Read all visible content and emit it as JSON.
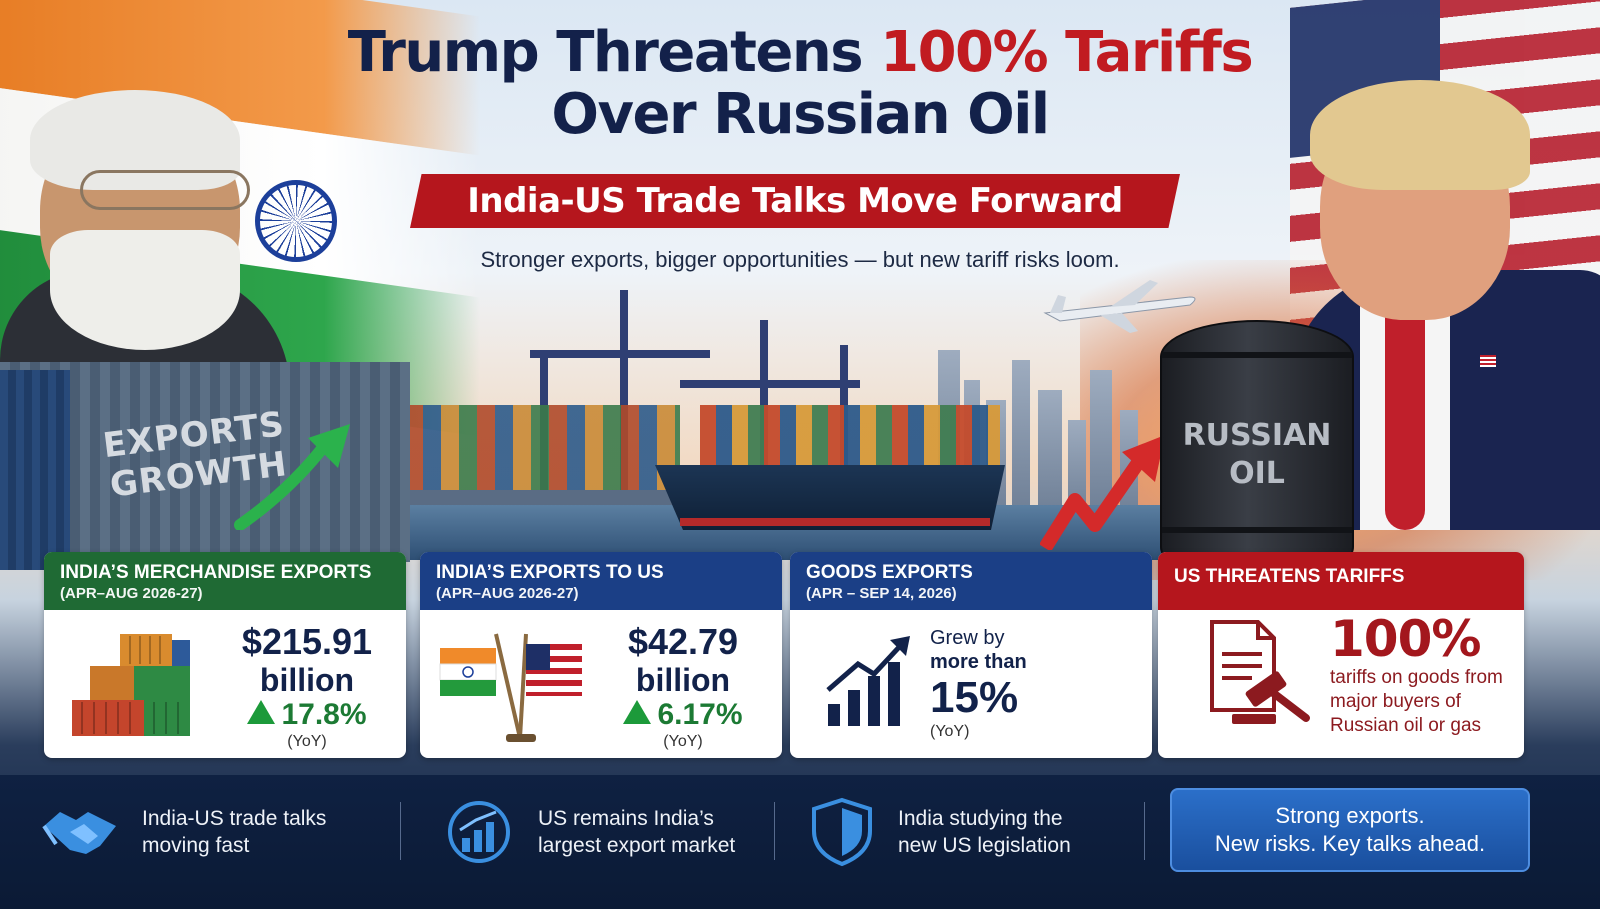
{
  "headline": {
    "line1_start": "Trump Threatens ",
    "line1_red": "100% Tariffs",
    "line2": "Over Russian Oil"
  },
  "banner": "India-US Trade Talks Move Forward",
  "subtitle": "Stronger exports, bigger opportunities — but new tariff risks loom.",
  "scene": {
    "container_text_1": "EXPORTS",
    "container_text_2": "GROWTH",
    "barrel_text_1": "RUSSIAN",
    "barrel_text_2": "OIL"
  },
  "cards": [
    {
      "title": "INDIA’S MERCHANDISE EXPORTS",
      "period": "(APR–AUG 2026-27)",
      "value": "$215.91",
      "unit": "billion",
      "change": "17.8%",
      "yoy": "(YoY)",
      "icon": "shipping-containers-icon"
    },
    {
      "title": "INDIA’S EXPORTS TO US",
      "period": "(APR–AUG 2026-27)",
      "value": "$42.79",
      "unit": "billion",
      "change": "6.17%",
      "yoy": "(YoY)",
      "icon": "india-us-flags-icon"
    },
    {
      "title": "GOODS EXPORTS",
      "period": "(APR – SEP 14, 2026)",
      "grew_by": "Grew by",
      "more_than": "more than",
      "value": "15%",
      "yoy": "(YoY)",
      "icon": "growth-chart-icon"
    },
    {
      "title": "US THREATENS TARIFFS",
      "value": "100%",
      "description": "tariffs on goods from major buyers of Russian oil or gas",
      "icon": "gavel-document-icon"
    }
  ],
  "footer": {
    "items": [
      {
        "text": "India-US trade talks moving fast",
        "line1": "India-US trade talks",
        "line2": "moving fast",
        "icon": "handshake-icon"
      },
      {
        "text": "US remains India’s largest export market",
        "line1": "US remains India’s",
        "line2": "largest export market",
        "icon": "bar-growth-icon"
      },
      {
        "text": "India studying the new US legislation",
        "line1": "India studying the",
        "line2": "new US legislation",
        "icon": "shield-icon"
      }
    ],
    "cta_line1": "Strong exports.",
    "cta_line2": "New risks.  Key talks ahead."
  },
  "colors": {
    "navy": "#13214a",
    "red": "#b5161d",
    "green": "#1f6a34",
    "blue": "#1b3f86"
  }
}
